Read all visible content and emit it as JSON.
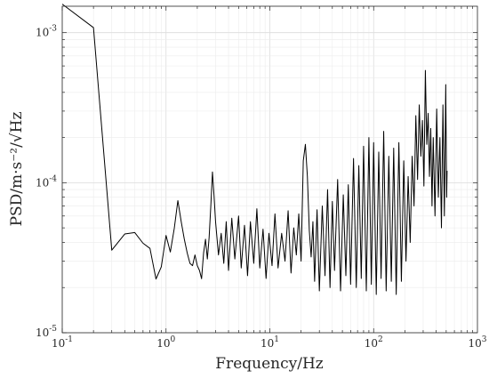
{
  "chart_data": {
    "type": "line",
    "title": "",
    "xlabel": "Frequency/Hz",
    "ylabel": "PSD/m·s⁻²/√Hz",
    "xscale": "log",
    "yscale": "log",
    "xlim": [
      0.1,
      1000
    ],
    "ylim": [
      1e-05,
      0.0015
    ],
    "grid": true,
    "x_ticks": [
      {
        "value": 0.1,
        "base": "10",
        "exp": "-1"
      },
      {
        "value": 1,
        "base": "10",
        "exp": "0"
      },
      {
        "value": 10,
        "base": "10",
        "exp": "1"
      },
      {
        "value": 100,
        "base": "10",
        "exp": "2"
      },
      {
        "value": 1000,
        "base": "10",
        "exp": "3"
      }
    ],
    "y_ticks": [
      {
        "value": 1e-05,
        "base": "10",
        "exp": "-5"
      },
      {
        "value": 0.0001,
        "base": "10",
        "exp": "-4"
      },
      {
        "value": 0.001,
        "base": "10",
        "exp": "-3"
      }
    ],
    "series": [
      {
        "color": "#000000",
        "points": [
          [
            0.1,
            0.00155
          ],
          [
            0.2,
            0.00108
          ],
          [
            0.3,
            3.55e-05
          ],
          [
            0.4,
            4.55e-05
          ],
          [
            0.5,
            4.65e-05
          ],
          [
            0.6,
            3.95e-05
          ],
          [
            0.7,
            3.65e-05
          ],
          [
            0.8,
            2.28e-05
          ],
          [
            0.9,
            2.75e-05
          ],
          [
            1.0,
            4.45e-05
          ],
          [
            1.1,
            3.45e-05
          ],
          [
            1.2,
            4.95e-05
          ],
          [
            1.3,
            7.6e-05
          ],
          [
            1.4,
            5.5e-05
          ],
          [
            1.5,
            4.2e-05
          ],
          [
            1.6,
            3.4e-05
          ],
          [
            1.7,
            2.9e-05
          ],
          [
            1.8,
            2.8e-05
          ],
          [
            1.9,
            3.3e-05
          ],
          [
            2.0,
            2.8e-05
          ],
          [
            2.1,
            2.6e-05
          ],
          [
            2.2,
            2.29e-05
          ],
          [
            2.3,
            3.4e-05
          ],
          [
            2.4,
            4.2e-05
          ],
          [
            2.5,
            3.1e-05
          ],
          [
            2.6,
            4.3e-05
          ],
          [
            2.7,
            7e-05
          ],
          [
            2.8,
            0.000118
          ],
          [
            2.9,
            8.2e-05
          ],
          [
            3.0,
            5.5e-05
          ],
          [
            3.2,
            3.3e-05
          ],
          [
            3.4,
            4.6e-05
          ],
          [
            3.6,
            2.9e-05
          ],
          [
            3.8,
            5.5e-05
          ],
          [
            4.0,
            2.6e-05
          ],
          [
            4.3,
            5.8e-05
          ],
          [
            4.6,
            3.1e-05
          ],
          [
            5.0,
            6e-05
          ],
          [
            5.3,
            2.7e-05
          ],
          [
            5.7,
            5.2e-05
          ],
          [
            6.1,
            2.4e-05
          ],
          [
            6.5,
            5.5e-05
          ],
          [
            7.0,
            2.9e-05
          ],
          [
            7.5,
            6.7e-05
          ],
          [
            8.0,
            2.7e-05
          ],
          [
            8.6,
            4.9e-05
          ],
          [
            9.2,
            2.3e-05
          ],
          [
            9.8,
            4.6e-05
          ],
          [
            10.5,
            2.8e-05
          ],
          [
            11.2,
            6.2e-05
          ],
          [
            12.0,
            2.7e-05
          ],
          [
            13.0,
            4.6e-05
          ],
          [
            14.0,
            3e-05
          ],
          [
            15.0,
            6.5e-05
          ],
          [
            16.0,
            2.5e-05
          ],
          [
            17.0,
            5e-05
          ],
          [
            18.0,
            3.3e-05
          ],
          [
            19.0,
            6.2e-05
          ],
          [
            20.0,
            3e-05
          ],
          [
            21.0,
            0.00014
          ],
          [
            22.0,
            0.00018
          ],
          [
            23.0,
            0.00011
          ],
          [
            24.0,
            4.8e-05
          ],
          [
            25.0,
            3.2e-05
          ],
          [
            26.0,
            5.5e-05
          ],
          [
            27.0,
            2.2e-05
          ],
          [
            28.5,
            6.6e-05
          ],
          [
            30.0,
            1.9e-05
          ],
          [
            32.0,
            7e-05
          ],
          [
            34.0,
            2.4e-05
          ],
          [
            36.0,
            9e-05
          ],
          [
            38.0,
            2e-05
          ],
          [
            40.0,
            7.5e-05
          ],
          [
            42.0,
            2.6e-05
          ],
          [
            45.0,
            0.000105
          ],
          [
            48.0,
            1.9e-05
          ],
          [
            51.0,
            8.3e-05
          ],
          [
            54.0,
            2.4e-05
          ],
          [
            57.0,
            9.7e-05
          ],
          [
            60.0,
            2.1e-05
          ],
          [
            64.0,
            0.000145
          ],
          [
            68.0,
            2e-05
          ],
          [
            72.0,
            0.00013
          ],
          [
            76.0,
            2.3e-05
          ],
          [
            80.0,
            0.000175
          ],
          [
            85.0,
            1.9e-05
          ],
          [
            90.0,
            0.0002
          ],
          [
            95.0,
            2.1e-05
          ],
          [
            100.0,
            0.000185
          ],
          [
            106.0,
            1.8e-05
          ],
          [
            112.0,
            0.00016
          ],
          [
            118.0,
            2.3e-05
          ],
          [
            125.0,
            0.00022
          ],
          [
            132.0,
            1.9e-05
          ],
          [
            140.0,
            0.00015
          ],
          [
            148.0,
            2.2e-05
          ],
          [
            156.0,
            0.00017
          ],
          [
            165.0,
            1.8e-05
          ],
          [
            175.0,
            0.000185
          ],
          [
            185.0,
            2.2e-05
          ],
          [
            195.0,
            0.00014
          ],
          [
            205.0,
            3e-05
          ],
          [
            215.0,
            0.00011
          ],
          [
            225.0,
            4e-05
          ],
          [
            235.0,
            0.00015
          ],
          [
            245.0,
            7e-05
          ],
          [
            255.0,
            0.00028
          ],
          [
            265.0,
            0.000105
          ],
          [
            275.0,
            0.00033
          ],
          [
            285.0,
            0.00015
          ],
          [
            295.0,
            0.00026
          ],
          [
            305.0,
            9.5e-05
          ],
          [
            315.0,
            0.00056
          ],
          [
            325.0,
            0.00018
          ],
          [
            335.0,
            0.00029
          ],
          [
            345.0,
            0.00011
          ],
          [
            355.0,
            0.00023
          ],
          [
            365.0,
            7e-05
          ],
          [
            375.0,
            0.0002
          ],
          [
            390.0,
            6e-05
          ],
          [
            405.0,
            0.00031
          ],
          [
            420.0,
            8e-05
          ],
          [
            435.0,
            0.0002
          ],
          [
            450.0,
            5e-05
          ],
          [
            465.0,
            0.00033
          ],
          [
            480.0,
            6e-05
          ],
          [
            495.0,
            0.00045
          ],
          [
            505.0,
            8e-05
          ],
          [
            510.0,
            0.00012
          ]
        ]
      }
    ]
  }
}
